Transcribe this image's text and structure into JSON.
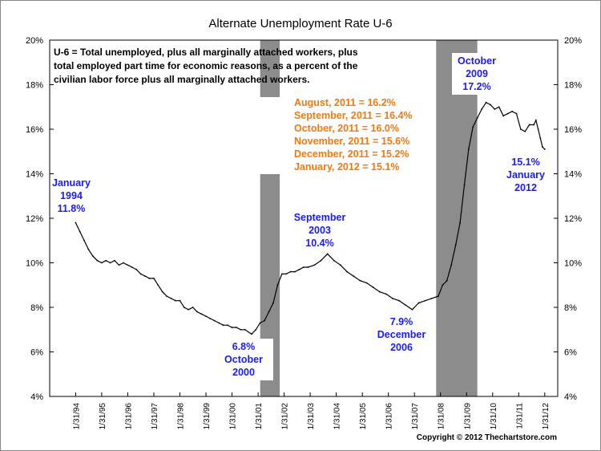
{
  "chart_data": {
    "type": "line",
    "title": "Alternate Unemployment Rate U-6",
    "xlabel": "",
    "ylabel": "",
    "ylim": [
      4,
      20
    ],
    "yticks": [
      "4%",
      "6%",
      "8%",
      "10%",
      "12%",
      "14%",
      "16%",
      "18%",
      "20%"
    ],
    "xlim": [
      "1993-02-01",
      "2012-07-31"
    ],
    "xticks": [
      "1/31/94",
      "1/31/95",
      "1/31/96",
      "1/31/97",
      "1/31/98",
      "1/31/99",
      "1/31/00",
      "1/31/01",
      "1/31/02",
      "1/31/03",
      "1/31/04",
      "1/31/05",
      "1/31/06",
      "1/31/07",
      "1/31/08",
      "1/31/09",
      "1/31/10",
      "1/31/11",
      "1/31/12"
    ],
    "grid": false,
    "recessions": [
      {
        "start": "2001-03-01",
        "end": "2001-11-30"
      },
      {
        "start": "2007-12-01",
        "end": "2009-06-30"
      }
    ],
    "series": [
      {
        "name": "",
        "color": "#000000",
        "x": [
          "1994-01-31",
          "1994-03-31",
          "1994-05-31",
          "1994-07-31",
          "1994-09-30",
          "1994-11-30",
          "1995-01-31",
          "1995-03-31",
          "1995-05-31",
          "1995-07-31",
          "1995-09-30",
          "1995-11-30",
          "1996-01-31",
          "1996-03-31",
          "1996-05-31",
          "1996-07-31",
          "1996-09-30",
          "1996-11-30",
          "1997-01-31",
          "1997-03-31",
          "1997-05-31",
          "1997-07-31",
          "1997-09-30",
          "1997-11-30",
          "1998-01-31",
          "1998-03-31",
          "1998-05-31",
          "1998-07-31",
          "1998-09-30",
          "1998-11-30",
          "1999-01-31",
          "1999-03-31",
          "1999-05-31",
          "1999-07-31",
          "1999-09-30",
          "1999-11-30",
          "2000-01-31",
          "2000-03-31",
          "2000-05-31",
          "2000-07-31",
          "2000-10-31",
          "2000-12-31",
          "2001-02-28",
          "2001-04-30",
          "2001-06-30",
          "2001-08-31",
          "2001-10-31",
          "2001-12-31",
          "2002-02-28",
          "2002-04-30",
          "2002-06-30",
          "2002-08-31",
          "2002-10-31",
          "2002-12-31",
          "2003-03-31",
          "2003-06-30",
          "2003-09-30",
          "2003-12-31",
          "2004-03-31",
          "2004-06-30",
          "2004-09-30",
          "2004-12-31",
          "2005-03-31",
          "2005-06-30",
          "2005-09-30",
          "2005-12-31",
          "2006-03-31",
          "2006-06-30",
          "2006-09-30",
          "2006-12-31",
          "2007-03-31",
          "2007-06-30",
          "2007-09-30",
          "2007-12-31",
          "2008-02-29",
          "2008-04-30",
          "2008-06-30",
          "2008-08-31",
          "2008-10-31",
          "2008-12-31",
          "2009-02-28",
          "2009-04-30",
          "2009-06-30",
          "2009-08-31",
          "2009-10-31",
          "2009-12-31",
          "2010-02-28",
          "2010-04-30",
          "2010-06-30",
          "2010-08-31",
          "2010-10-31",
          "2010-12-31",
          "2011-02-28",
          "2011-04-30",
          "2011-06-30",
          "2011-08-31",
          "2011-09-30",
          "2011-10-31",
          "2011-11-30",
          "2011-12-31",
          "2012-01-31"
        ],
        "y": [
          11.8,
          11.4,
          11.0,
          10.6,
          10.3,
          10.1,
          10.0,
          10.1,
          10.0,
          10.1,
          9.9,
          10.0,
          9.9,
          9.8,
          9.7,
          9.5,
          9.4,
          9.3,
          9.3,
          9.0,
          8.7,
          8.5,
          8.4,
          8.3,
          8.3,
          8.0,
          7.9,
          8.0,
          7.8,
          7.7,
          7.6,
          7.5,
          7.4,
          7.3,
          7.2,
          7.2,
          7.1,
          7.1,
          7.0,
          7.0,
          6.8,
          7.0,
          7.3,
          7.4,
          7.8,
          8.2,
          9.0,
          9.5,
          9.5,
          9.6,
          9.6,
          9.7,
          9.8,
          9.8,
          9.9,
          10.1,
          10.4,
          10.1,
          9.9,
          9.6,
          9.4,
          9.2,
          9.1,
          8.9,
          8.7,
          8.6,
          8.4,
          8.3,
          8.1,
          7.9,
          8.2,
          8.3,
          8.4,
          8.5,
          9.0,
          9.2,
          9.9,
          10.8,
          11.8,
          13.5,
          15.1,
          16.1,
          16.5,
          16.9,
          17.2,
          17.1,
          16.9,
          17.0,
          16.6,
          16.7,
          16.8,
          16.7,
          16.0,
          15.9,
          16.2,
          16.2,
          16.4,
          16.0,
          15.6,
          15.2,
          15.1
        ]
      }
    ],
    "annotations": [
      {
        "text": "January",
        "color": "#1a1aff"
      },
      {
        "text": "1994",
        "color": "#1a1aff"
      },
      {
        "text": "11.8%",
        "color": "#1a1aff"
      },
      {
        "text": "6.8%",
        "color": "#1a1aff"
      },
      {
        "text": "October",
        "color": "#1a1aff"
      },
      {
        "text": "2000",
        "color": "#1a1aff"
      },
      {
        "text": "September",
        "color": "#1a1aff"
      },
      {
        "text": "2003",
        "color": "#1a1aff"
      },
      {
        "text": "10.4%",
        "color": "#1a1aff"
      },
      {
        "text": "7.9%",
        "color": "#1a1aff"
      },
      {
        "text": "December",
        "color": "#1a1aff"
      },
      {
        "text": "2006",
        "color": "#1a1aff"
      },
      {
        "text": "October",
        "color": "#1a1aff"
      },
      {
        "text": "2009",
        "color": "#1a1aff"
      },
      {
        "text": "17.2%",
        "color": "#1a1aff"
      },
      {
        "text": "15.1%",
        "color": "#1a1aff"
      },
      {
        "text": "January",
        "color": "#1a1aff"
      },
      {
        "text": "2012",
        "color": "#1a1aff"
      },
      {
        "text": "August, 2011 = 16.2%",
        "color": "#f07a10"
      },
      {
        "text": "September, 2011 = 16.4%",
        "color": "#f07a10"
      },
      {
        "text": "October, 2011 = 16.0%",
        "color": "#f07a10"
      },
      {
        "text": "November, 2011 = 15.6%",
        "color": "#f07a10"
      },
      {
        "text": "December, 2011 = 15.2%",
        "color": "#f07a10"
      },
      {
        "text": "January, 2012 = 15.1%",
        "color": "#f07a10"
      },
      {
        "text": "U-6 = Total unemployed, plus all marginally attached workers, plus",
        "color": "#000000"
      },
      {
        "text": "total employed part time for economic reasons, as a percent of the",
        "color": "#000000"
      },
      {
        "text": "civilian labor force plus all marginally attached workers.",
        "color": "#000000"
      }
    ],
    "footer": "Copyright © 2012 Thechartstore.com"
  },
  "colors": {
    "recession": "#8c8c8c",
    "axis": "#000000",
    "blue_annotation": "#1a1aff",
    "orange_annotation": "#f07a10"
  }
}
